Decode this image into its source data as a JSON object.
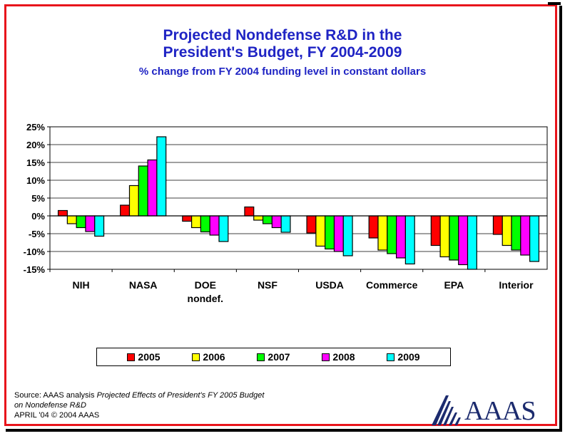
{
  "title": {
    "line1": "Projected Nondefense R&D in the",
    "line2": "President's Budget, FY 2004-2009",
    "subtitle": "% change from FY 2004 funding level in constant dollars"
  },
  "chart_data": {
    "type": "bar",
    "title": "Projected Nondefense R&D in the President's Budget, FY 2004-2009",
    "subtitle": "% change from FY 2004 funding level in constant dollars",
    "xlabel": "",
    "ylabel": "",
    "ylim": [
      -15,
      25
    ],
    "yticks": [
      25,
      20,
      15,
      10,
      5,
      0,
      -5,
      -10,
      -15
    ],
    "ytick_labels": [
      "25%",
      "20%",
      "15%",
      "10%",
      "5%",
      "0%",
      "-5%",
      "-10%",
      "-15%"
    ],
    "categories": [
      "NIH",
      "NASA",
      "DOE nondef.",
      "NSF",
      "USDA",
      "Commerce",
      "EPA",
      "Interior"
    ],
    "category_labels": [
      [
        "NIH"
      ],
      [
        "NASA"
      ],
      [
        "DOE",
        "nondef."
      ],
      [
        "NSF"
      ],
      [
        "USDA"
      ],
      [
        "Commerce"
      ],
      [
        "EPA"
      ],
      [
        "Interior"
      ]
    ],
    "legend_position": "bottom",
    "series": [
      {
        "name": "2005",
        "color": "#ff0000",
        "values": [
          1.5,
          3.0,
          -1.5,
          2.5,
          -4.8,
          -6.2,
          -8.3,
          -5.2
        ]
      },
      {
        "name": "2006",
        "color": "#ffff00",
        "values": [
          -2.2,
          8.5,
          -3.3,
          -1.2,
          -8.5,
          -9.6,
          -11.5,
          -8.3
        ]
      },
      {
        "name": "2007",
        "color": "#00ff00",
        "values": [
          -3.3,
          14.0,
          -4.5,
          -2.2,
          -9.3,
          -10.6,
          -12.4,
          -9.6
        ]
      },
      {
        "name": "2008",
        "color": "#ff00ff",
        "values": [
          -4.4,
          15.7,
          -5.4,
          -3.3,
          -10.0,
          -11.8,
          -13.7,
          -11.0
        ]
      },
      {
        "name": "2009",
        "color": "#00ffff",
        "values": [
          -5.7,
          22.2,
          -7.2,
          -4.6,
          -11.2,
          -13.5,
          -15.0,
          -12.8
        ]
      }
    ]
  },
  "legend": {
    "items": [
      "2005",
      "2006",
      "2007",
      "2008",
      "2009"
    ]
  },
  "source": {
    "prefix": "Source: AAAS analysis ",
    "italic_line1": "Projected Effects of President's FY 2005 Budget",
    "italic_line2": "on Nondefense R&D",
    "line3": "APRIL '04 © 2004 AAAS"
  },
  "logo": {
    "text": "AAAS"
  }
}
